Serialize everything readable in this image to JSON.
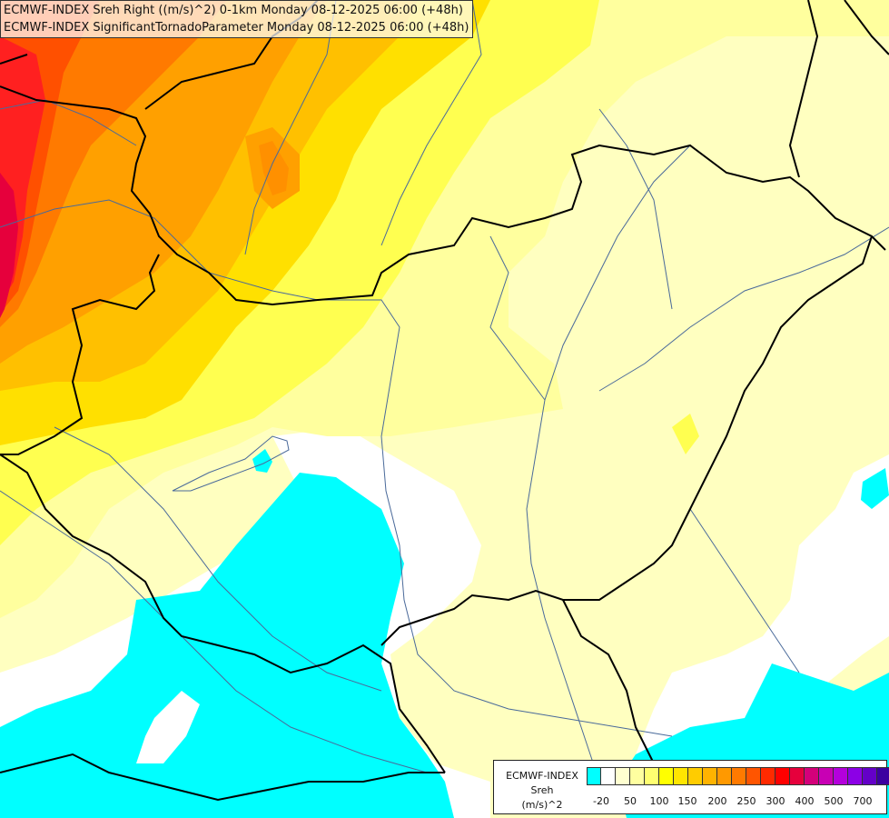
{
  "header": {
    "line1": "ECMWF-INDEX Sreh Right ((m/s)^2) 0-1km Monday 08-12-2025 06:00 (+48h)",
    "line2": "ECMWF-INDEX SignificantTornadoParameter Monday 08-12-2025 06:00 (+48h)"
  },
  "legend": {
    "source": "ECMWF-INDEX",
    "parameter": "Sreh",
    "unit": "(m/s)^2",
    "colors": [
      "#00ffff",
      "#ffffff",
      "#ffffd0",
      "#ffffa0",
      "#ffff70",
      "#ffff00",
      "#ffe600",
      "#ffcc00",
      "#ffb300",
      "#ff9900",
      "#ff7a00",
      "#ff5500",
      "#ff2a00",
      "#ff0000",
      "#e6003c",
      "#d4007a",
      "#c800b4",
      "#b400dc",
      "#8c00e6",
      "#6400c8",
      "#3c00a0",
      "#14147a"
    ],
    "tick_labels": [
      "-20",
      "50",
      "100",
      "150",
      "200",
      "250",
      "300",
      "400",
      "500",
      "700"
    ]
  },
  "map_colors": {
    "cyan": "#00ffff",
    "white": "#ffffff",
    "pale_yellow": "#ffffc0",
    "light_yellow": "#ffff9e",
    "yellow": "#ffff50",
    "gold": "#ffe000",
    "orange_light": "#ffc000",
    "orange": "#ffa000",
    "orange_dark": "#ff7a00",
    "red_orange": "#ff5000",
    "red": "#ff2020",
    "crimson": "#e6003c",
    "border": "#000000",
    "river": "#4a6a9a"
  }
}
